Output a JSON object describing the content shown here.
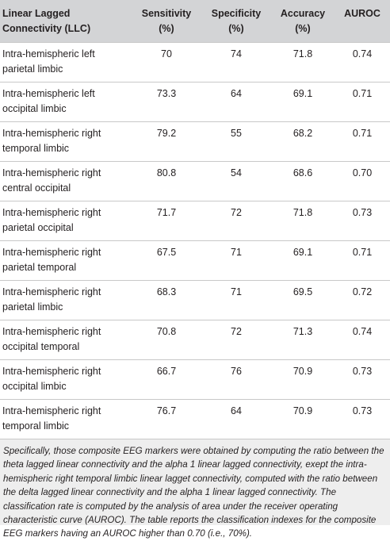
{
  "table": {
    "headers": [
      "Linear Lagged Connectivity (LLC)",
      "Sensitivity (%)",
      "Specificity (%)",
      "Accuracy (%)",
      "AUROC"
    ],
    "rows": [
      [
        "Intra-hemispheric left parietal limbic",
        "70",
        "74",
        "71.8",
        "0.74"
      ],
      [
        "Intra-hemispheric left occipital limbic",
        "73.3",
        "64",
        "69.1",
        "0.71"
      ],
      [
        "Intra-hemispheric right temporal limbic",
        "79.2",
        "55",
        "68.2",
        "0.71"
      ],
      [
        "Intra-hemispheric right central occipital",
        "80.8",
        "54",
        "68.6",
        "0.70"
      ],
      [
        "Intra-hemispheric right parietal occipital",
        "71.7",
        "72",
        "71.8",
        "0.73"
      ],
      [
        "Intra-hemispheric right parietal temporal",
        "67.5",
        "71",
        "69.1",
        "0.71"
      ],
      [
        "Intra-hemispheric right parietal limbic",
        "68.3",
        "71",
        "69.5",
        "0.72"
      ],
      [
        "Intra-hemispheric right occipital temporal",
        "70.8",
        "72",
        "71.3",
        "0.74"
      ],
      [
        "Intra-hemispheric right occipital limbic",
        "66.7",
        "76",
        "70.9",
        "0.73"
      ],
      [
        "Intra-hemispheric right temporal limbic",
        "76.7",
        "64",
        "70.9",
        "0.73"
      ]
    ]
  },
  "footnote": "Specifically, those composite EEG markers were obtained by computing the ratio between the theta lagged linear connectivity and the alpha 1 linear lagged connectivity, exept the intra-hemispheric right temporal limbic linear lagget connectivity, computed with the ratio between the delta lagged linear connectivity and the alpha 1 linear lagged connectivity. The classification rate is computed by the analysis of area under the receiver operating characteristic curve (AUROC). The table reports the classification indexes for the composite EEG markers having an AUROC higher than 0.70 (i.e., 70%).",
  "colors": {
    "header_bg": "#d3d4d6",
    "footnote_bg": "#eeeeee",
    "rule": "#c8c8c8",
    "text": "#231f20"
  }
}
